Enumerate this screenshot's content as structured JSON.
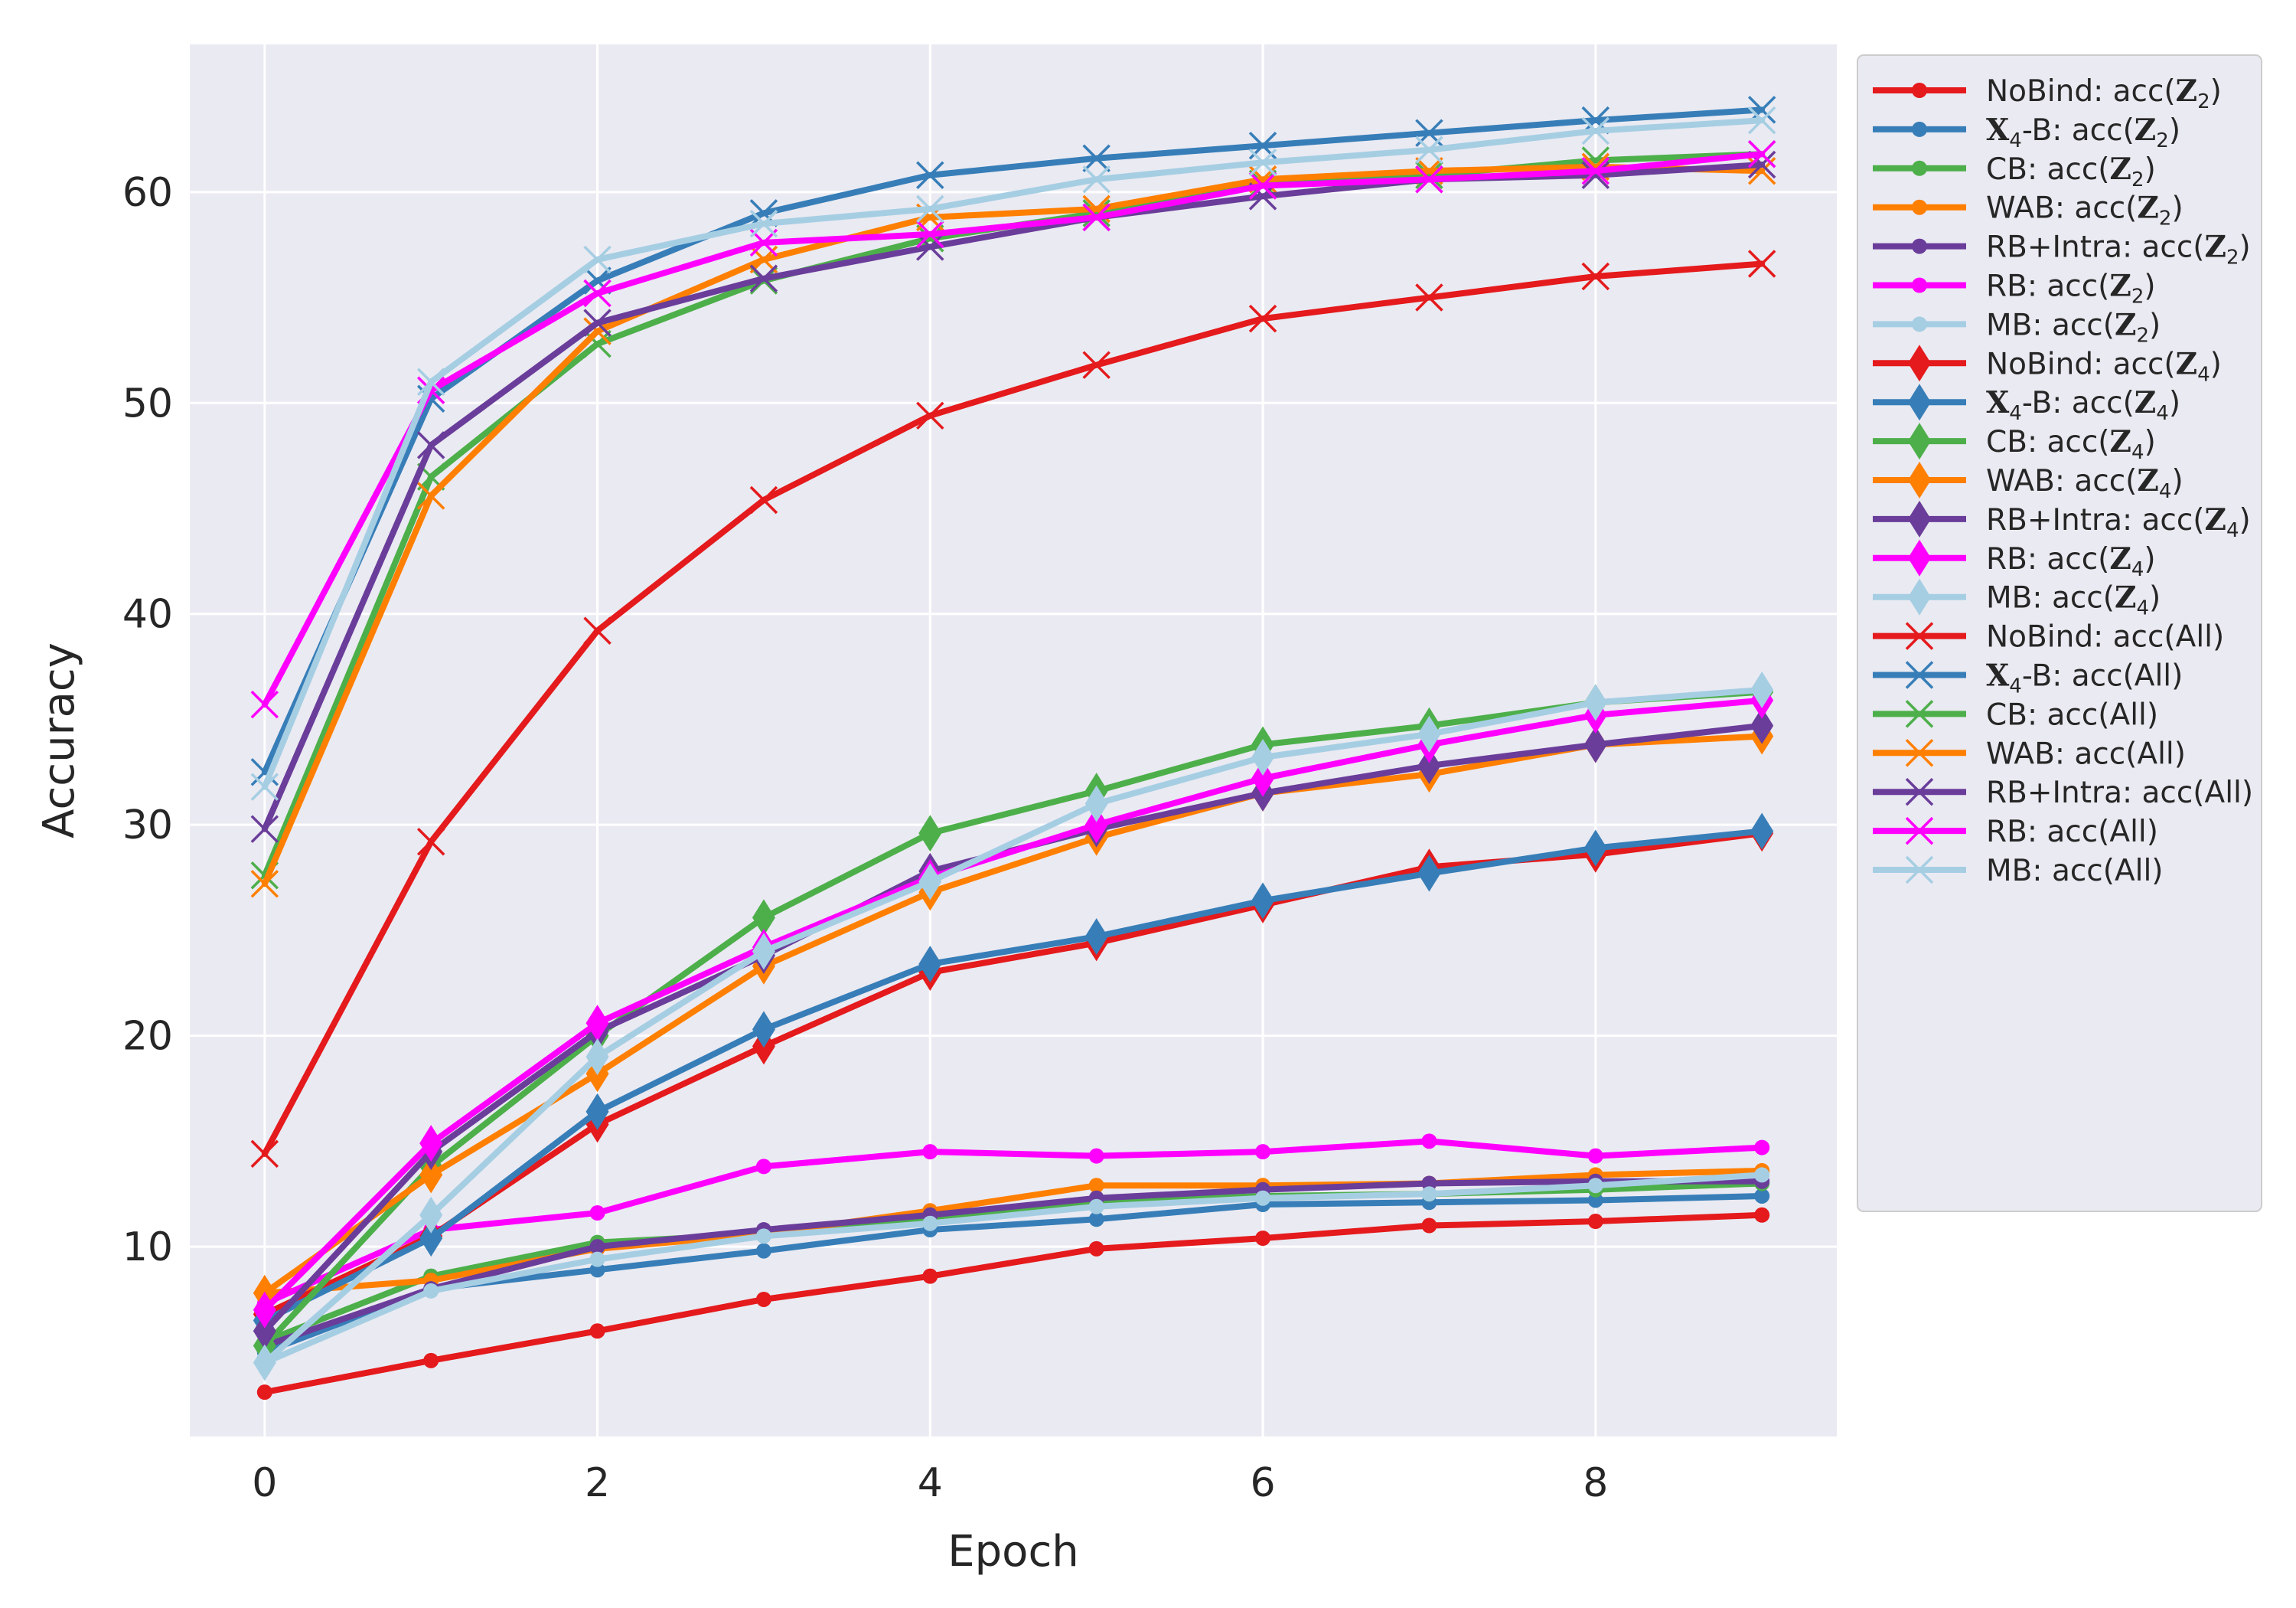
{
  "chart_data": {
    "type": "line",
    "title": "",
    "xlabel": "Epoch",
    "ylabel": "Accuracy",
    "xlim": [
      -0.45,
      9.45
    ],
    "ylim": [
      1.0,
      67.0
    ],
    "xticks": [
      0,
      2,
      4,
      6,
      8
    ],
    "yticks": [
      10,
      20,
      30,
      40,
      50,
      60
    ],
    "xtick_labels": [
      "0",
      "2",
      "4",
      "6",
      "8"
    ],
    "ytick_labels": [
      "10",
      "20",
      "30",
      "40",
      "50",
      "60"
    ],
    "grid": true,
    "legend_position": "outside right, top",
    "x": [
      0,
      1,
      2,
      3,
      4,
      5,
      6,
      7,
      8,
      9
    ],
    "series": [
      {
        "name": "NoBind: acc(Z2)",
        "label_main": "NoBind: acc(",
        "label_sym": "Z",
        "label_sub": "2",
        "label_end": ")",
        "color": "#e41a1c",
        "marker": "dot",
        "values": [
          3.1,
          4.6,
          6.0,
          7.5,
          8.6,
          9.9,
          10.4,
          11.0,
          11.2,
          11.5
        ]
      },
      {
        "name": "X4-B: acc(Z2)",
        "label_main": "-B: acc(",
        "label_pre": "X",
        "label_pre_sub": "4",
        "label_sym": "Z",
        "label_sub": "2",
        "label_end": ")",
        "color": "#377eb8",
        "marker": "dot",
        "values": [
          5.0,
          8.0,
          8.9,
          9.8,
          10.8,
          11.3,
          12.0,
          12.1,
          12.2,
          12.4
        ]
      },
      {
        "name": "CB: acc(Z2)",
        "label_main": "CB: acc(",
        "label_sym": "Z",
        "label_sub": "2",
        "label_end": ")",
        "color": "#4daf4a",
        "marker": "dot",
        "values": [
          5.5,
          8.6,
          10.2,
          10.6,
          11.4,
          12.1,
          12.4,
          12.5,
          12.7,
          13.0
        ]
      },
      {
        "name": "WAB: acc(Z2)",
        "label_main": "WAB: acc(",
        "label_sym": "Z",
        "label_sub": "2",
        "label_end": ")",
        "color": "#ff7f00",
        "marker": "dot",
        "values": [
          7.8,
          8.4,
          9.9,
          10.6,
          11.7,
          12.9,
          12.9,
          13.0,
          13.4,
          13.6
        ]
      },
      {
        "name": "RB+Intra: acc(Z2)",
        "label_main": "RB+Intra: acc(",
        "label_sym": "Z",
        "label_sub": "2",
        "label_end": ")",
        "color": "#6a3d9a",
        "marker": "dot",
        "values": [
          5.3,
          8.0,
          10.0,
          10.8,
          11.5,
          12.3,
          12.7,
          13.0,
          13.1,
          13.1
        ]
      },
      {
        "name": "RB: acc(Z2)",
        "label_main": "RB: acc(",
        "label_sym": "Z",
        "label_sub": "2",
        "label_end": ")",
        "color": "#ff00ff",
        "marker": "dot",
        "values": [
          7.3,
          10.8,
          11.6,
          13.8,
          14.5,
          14.3,
          14.5,
          15.0,
          14.3,
          14.7
        ]
      },
      {
        "name": "MB: acc(Z2)",
        "label_main": "MB: acc(",
        "label_sym": "Z",
        "label_sub": "2",
        "label_end": ")",
        "color": "#a6cee3",
        "marker": "dot",
        "values": [
          4.5,
          7.9,
          9.4,
          10.5,
          11.1,
          11.9,
          12.3,
          12.5,
          12.9,
          13.4
        ]
      },
      {
        "name": "NoBind: acc(Z4)",
        "label_main": "NoBind: acc(",
        "label_sym": "Z",
        "label_sub": "4",
        "label_end": ")",
        "color": "#e41a1c",
        "marker": "diamond",
        "values": [
          6.8,
          10.5,
          15.8,
          19.5,
          23.0,
          24.4,
          26.2,
          28.0,
          28.6,
          29.6
        ]
      },
      {
        "name": "X4-B: acc(Z4)",
        "label_main": "-B: acc(",
        "label_pre": "X",
        "label_pre_sub": "4",
        "label_sym": "Z",
        "label_sub": "4",
        "label_end": ")",
        "color": "#377eb8",
        "marker": "diamond",
        "values": [
          6.5,
          10.4,
          16.4,
          20.3,
          23.4,
          24.7,
          26.4,
          27.7,
          28.9,
          29.7
        ]
      },
      {
        "name": "CB: acc(Z4)",
        "label_main": "CB: acc(",
        "label_sym": "Z",
        "label_sub": "4",
        "label_end": ")",
        "color": "#4daf4a",
        "marker": "diamond",
        "values": [
          5.3,
          13.8,
          20.0,
          25.6,
          29.6,
          31.6,
          33.8,
          34.7,
          35.8,
          36.3
        ]
      },
      {
        "name": "WAB: acc(Z4)",
        "label_main": "WAB: acc(",
        "label_sym": "Z",
        "label_sub": "4",
        "label_end": ")",
        "color": "#ff7f00",
        "marker": "diamond",
        "values": [
          7.8,
          13.4,
          18.2,
          23.3,
          26.8,
          29.4,
          31.5,
          32.4,
          33.8,
          34.2
        ]
      },
      {
        "name": "RB+Intra: acc(Z4)",
        "label_main": "RB+Intra: acc(",
        "label_sym": "Z",
        "label_sub": "4",
        "label_end": ")",
        "color": "#6a3d9a",
        "marker": "diamond",
        "values": [
          6.0,
          14.5,
          20.2,
          23.8,
          27.8,
          29.8,
          31.5,
          32.8,
          33.8,
          34.7
        ]
      },
      {
        "name": "RB: acc(Z4)",
        "label_main": "RB: acc(",
        "label_sym": "Z",
        "label_sub": "4",
        "label_end": ")",
        "color": "#ff00ff",
        "marker": "diamond",
        "values": [
          7.0,
          14.9,
          20.6,
          24.2,
          27.5,
          30.0,
          32.2,
          33.8,
          35.2,
          35.9
        ]
      },
      {
        "name": "MB: acc(Z4)",
        "label_main": "MB: acc(",
        "label_sym": "Z",
        "label_sub": "4",
        "label_end": ")",
        "color": "#a6cee3",
        "marker": "diamond",
        "values": [
          4.5,
          11.5,
          19.0,
          24.0,
          27.3,
          31.0,
          33.2,
          34.3,
          35.8,
          36.4
        ]
      },
      {
        "name": "NoBind: acc(All)",
        "label_main": "NoBind: acc(All)",
        "color": "#e41a1c",
        "marker": "x",
        "values": [
          14.4,
          29.2,
          39.2,
          45.4,
          49.4,
          51.8,
          54.0,
          55.0,
          56.0,
          56.6
        ]
      },
      {
        "name": "X4-B: acc(All)",
        "label_main": "-B: acc(All)",
        "label_pre": "X",
        "label_pre_sub": "4",
        "color": "#377eb8",
        "marker": "x",
        "values": [
          32.5,
          50.2,
          55.8,
          59.0,
          60.8,
          61.6,
          62.2,
          62.8,
          63.4,
          63.9
        ]
      },
      {
        "name": "CB: acc(All)",
        "label_main": "CB: acc(All)",
        "color": "#4daf4a",
        "marker": "x",
        "values": [
          27.6,
          46.5,
          52.8,
          55.8,
          57.8,
          59.0,
          60.4,
          60.8,
          61.5,
          61.8
        ]
      },
      {
        "name": "WAB: acc(All)",
        "label_main": "WAB: acc(All)",
        "color": "#ff7f00",
        "marker": "x",
        "values": [
          27.2,
          45.6,
          53.4,
          56.8,
          58.8,
          59.2,
          60.6,
          61.0,
          61.2,
          61.0
        ]
      },
      {
        "name": "RB+Intra: acc(All)",
        "label_main": "RB+Intra: acc(All)",
        "color": "#6a3d9a",
        "marker": "x",
        "values": [
          29.8,
          48.0,
          53.8,
          55.9,
          57.4,
          58.8,
          59.8,
          60.6,
          60.8,
          61.3
        ]
      },
      {
        "name": "RB: acc(All)",
        "label_main": "RB: acc(All)",
        "color": "#ff00ff",
        "marker": "x",
        "values": [
          35.7,
          50.6,
          55.2,
          57.6,
          58.0,
          58.8,
          60.3,
          60.6,
          61.0,
          61.8
        ]
      },
      {
        "name": "MB: acc(All)",
        "label_main": "MB: acc(All)",
        "color": "#a6cee3",
        "marker": "x",
        "values": [
          31.8,
          51.0,
          56.8,
          58.5,
          59.2,
          60.6,
          61.4,
          62.0,
          62.9,
          63.4
        ]
      }
    ]
  }
}
